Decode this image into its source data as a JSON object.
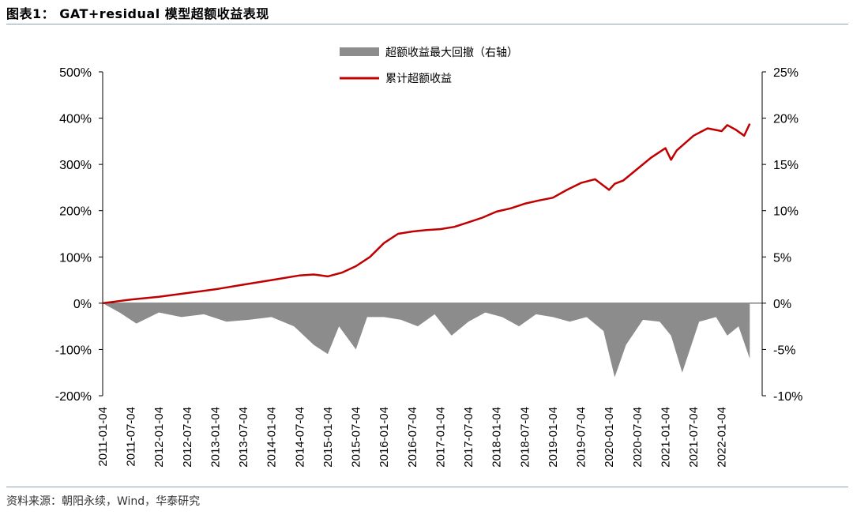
{
  "header": {
    "title": "图表1： GAT+residual 模型超额收益表现"
  },
  "footer": {
    "source": "资料来源：朝阳永续，Wind，华泰研究"
  },
  "colors": {
    "line": "#c00000",
    "bar": "#8c8c8c",
    "rule": "#8aa2b8"
  },
  "chart_data": {
    "type": "line",
    "title": "",
    "x_tick_labels": [
      "2011-01-04",
      "2011-07-04",
      "2012-01-04",
      "2012-07-04",
      "2013-01-04",
      "2013-07-04",
      "2014-01-04",
      "2014-07-04",
      "2015-01-04",
      "2015-07-04",
      "2016-01-04",
      "2016-07-04",
      "2017-01-04",
      "2017-07-04",
      "2018-01-04",
      "2018-07-04",
      "2019-01-04",
      "2019-07-04",
      "2020-01-04",
      "2020-07-04",
      "2021-01-04",
      "2021-07-04",
      "2022-01-04"
    ],
    "y_left": {
      "ticks": [
        "500%",
        "400%",
        "300%",
        "200%",
        "100%",
        "0%",
        "-100%",
        "-200%"
      ],
      "range": [
        -200,
        500
      ],
      "unit": "%"
    },
    "y_right": {
      "ticks": [
        "25%",
        "20%",
        "15%",
        "10%",
        "5%",
        "0%",
        "-5%",
        "-10%"
      ],
      "range": [
        -10,
        25
      ],
      "unit": "%"
    },
    "legend_position": "top-center",
    "series": [
      {
        "name": "累计超额收益",
        "axis": "left",
        "type": "line",
        "x": [
          2011.0,
          2011.5,
          2012.0,
          2012.5,
          2013.0,
          2013.5,
          2014.0,
          2014.5,
          2014.75,
          2015.0,
          2015.25,
          2015.5,
          2015.75,
          2016.0,
          2016.25,
          2016.5,
          2016.75,
          2017.0,
          2017.25,
          2017.5,
          2017.75,
          2018.0,
          2018.25,
          2018.5,
          2018.75,
          2019.0,
          2019.25,
          2019.5,
          2019.75,
          2020.0,
          2020.1,
          2020.25,
          2020.5,
          2020.75,
          2021.0,
          2021.1,
          2021.2,
          2021.5,
          2021.75,
          2022.0,
          2022.1,
          2022.25,
          2022.4,
          2022.5
        ],
        "values": [
          0,
          8,
          14,
          22,
          30,
          40,
          50,
          60,
          62,
          58,
          66,
          80,
          100,
          130,
          150,
          155,
          158,
          160,
          165,
          175,
          185,
          198,
          205,
          215,
          222,
          228,
          245,
          260,
          268,
          245,
          258,
          265,
          290,
          315,
          335,
          310,
          330,
          362,
          378,
          372,
          385,
          375,
          362,
          388
        ]
      },
      {
        "name": "超额收益最大回撤（右轴）",
        "axis": "right",
        "type": "area",
        "x": [
          2011.0,
          2011.3,
          2011.6,
          2012.0,
          2012.4,
          2012.8,
          2013.2,
          2013.6,
          2014.0,
          2014.4,
          2014.75,
          2015.0,
          2015.2,
          2015.5,
          2015.7,
          2016.0,
          2016.3,
          2016.6,
          2016.9,
          2017.2,
          2017.5,
          2017.8,
          2018.1,
          2018.4,
          2018.7,
          2019.0,
          2019.3,
          2019.6,
          2019.9,
          2020.1,
          2020.3,
          2020.6,
          2020.9,
          2021.1,
          2021.3,
          2021.6,
          2021.9,
          2022.1,
          2022.3,
          2022.5
        ],
        "values": [
          0,
          -1.0,
          -2.2,
          -1.0,
          -1.5,
          -1.2,
          -2.0,
          -1.8,
          -1.5,
          -2.5,
          -4.5,
          -5.5,
          -2.5,
          -5.0,
          -1.5,
          -1.5,
          -1.8,
          -2.5,
          -1.2,
          -3.5,
          -2.0,
          -1.0,
          -1.5,
          -2.5,
          -1.2,
          -1.5,
          -2.0,
          -1.5,
          -3.0,
          -8.0,
          -4.5,
          -1.8,
          -2.0,
          -3.5,
          -7.5,
          -2.0,
          -1.5,
          -3.5,
          -2.5,
          -6.0
        ]
      }
    ]
  }
}
